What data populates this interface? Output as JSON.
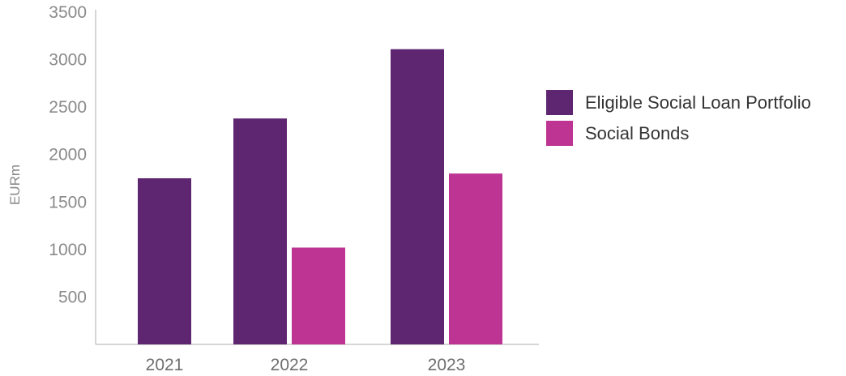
{
  "chart_data": {
    "type": "bar",
    "categories": [
      "2021",
      "2022",
      "2023"
    ],
    "series": [
      {
        "name": "Eligible Social Loan Portfolio",
        "color": "#5e2670",
        "values": [
          1750,
          2380,
          3110
        ]
      },
      {
        "name": "Social Bonds",
        "color": "#bd3493",
        "values": [
          null,
          1020,
          1800
        ]
      }
    ],
    "ylabel": "EURm",
    "xlabel": "",
    "ylim": [
      0,
      3500
    ],
    "yticks": [
      500,
      1000,
      1500,
      2000,
      2500,
      3000,
      3500
    ],
    "grid": false,
    "legend_position": "right"
  }
}
